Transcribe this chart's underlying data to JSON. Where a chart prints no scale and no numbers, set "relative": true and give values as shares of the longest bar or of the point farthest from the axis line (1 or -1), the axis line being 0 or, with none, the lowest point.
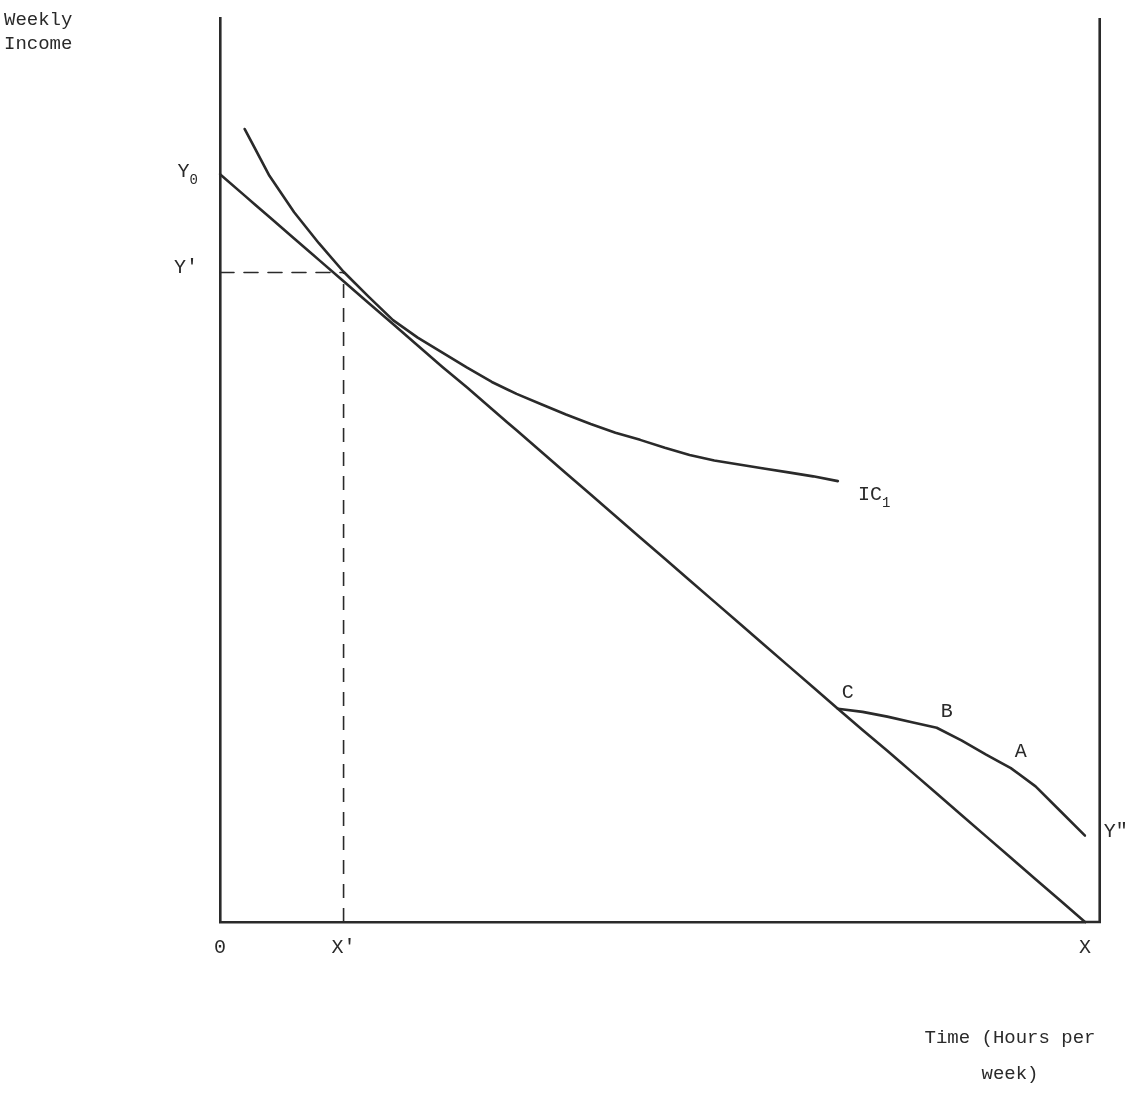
{
  "chart_data": {
    "type": "line",
    "relative": true,
    "xlabel": "Time (Hours per week)",
    "categories": [
      "0",
      null,
      null,
      null,
      null,
      "X'",
      null,
      null,
      null,
      null,
      null,
      null,
      null,
      null,
      null,
      null,
      null,
      null,
      null,
      null,
      null,
      null,
      null,
      null,
      null,
      null,
      null,
      null,
      null,
      null,
      null,
      null,
      null,
      null,
      null,
      "X"
    ],
    "marker": "none",
    "grid": false,
    "legend": false,
    "series": [
      {
        "color": "#2a2a2a",
        "values": [
          0.943,
          0.916,
          0.889,
          0.862,
          0.835,
          0.808,
          0.781,
          0.754,
          0.727,
          0.7,
          0.674,
          0.647,
          0.62,
          0.593,
          0.566,
          0.539,
          0.512,
          0.485,
          0.458,
          0.431,
          0.404,
          0.377,
          0.35,
          0.323,
          0.296,
          0.269,
          0.242,
          0.216,
          0.189,
          0.162,
          0.135,
          0.108,
          0.081,
          0.054,
          0.027,
          0
        ]
      },
      {
        "color": "#2a2a2a",
        "values": [
          null,
          1,
          0.941,
          0.895,
          0.856,
          0.82,
          0.789,
          0.759,
          0.737,
          0.718,
          0.699,
          0.681,
          0.666,
          0.653,
          0.64,
          0.628,
          0.617,
          0.608,
          0.598,
          0.589,
          0.582,
          0.577,
          0.572,
          0.567,
          0.562,
          0.556,
          null,
          null,
          null,
          null,
          null,
          null,
          null,
          null,
          null,
          null
        ]
      },
      {
        "color": "#2a2a2a",
        "values": [
          null,
          null,
          null,
          null,
          null,
          null,
          null,
          null,
          null,
          null,
          null,
          null,
          null,
          null,
          null,
          null,
          null,
          null,
          null,
          null,
          null,
          null,
          null,
          null,
          null,
          0.269,
          0.265,
          0.259,
          0.252,
          0.245,
          0.229,
          0.211,
          0.194,
          0.171,
          0.14,
          0.109
        ]
      },
      {
        "color": "#2a2a2a",
        "line_style": "dashed",
        "values": [
          0.819,
          0.819,
          0.819,
          0.819,
          0.819,
          0.819,
          null,
          null,
          null,
          null,
          null,
          null,
          null,
          null,
          null,
          null,
          null,
          null,
          null,
          null,
          null,
          null,
          null,
          null,
          null,
          null,
          null,
          null,
          null,
          null,
          null,
          null,
          null,
          null,
          null,
          null
        ]
      }
    ],
    "ref_lines": [
      {
        "axis": "x",
        "value": "X'",
        "line_style": "dashed",
        "color": "#2a2a2a"
      }
    ],
    "annotations": [
      "Weekly Income",
      "Y$_{0}$",
      "Y'",
      "IC$_{1}$",
      {
        "text": "C",
        "y": 0.269
      },
      {
        "text": "B",
        "y": 0.245
      },
      {
        "text": "A",
        "y": 0.194
      },
      {
        "text": "Y\"",
        "x": "X",
        "y": 0.109
      }
    ]
  }
}
